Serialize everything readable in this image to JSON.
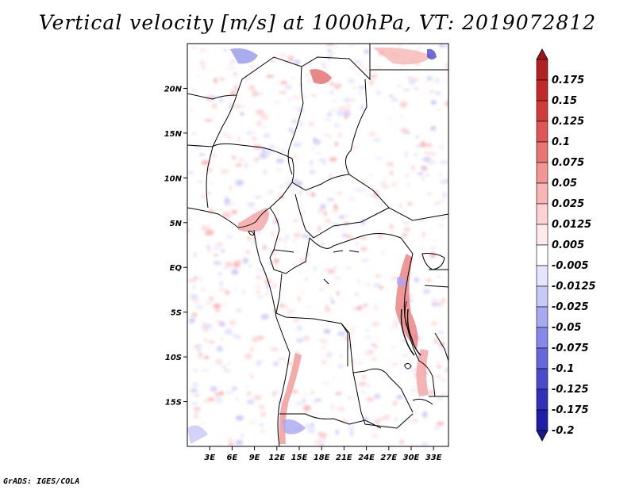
{
  "title": "Vertical velocity [m/s] at 1000hPa, VT: 2019072812",
  "credit": "GrADS: IGES/COLA",
  "map": {
    "region": "Central Africa",
    "lon_range": [
      0,
      35
    ],
    "lat_range": [
      -20,
      25
    ],
    "lat_ticks": [
      {
        "value": 20,
        "label": "20N"
      },
      {
        "value": 15,
        "label": "15N"
      },
      {
        "value": 10,
        "label": "10N"
      },
      {
        "value": 5,
        "label": "5N"
      },
      {
        "value": 0,
        "label": "EQ"
      },
      {
        "value": -5,
        "label": "5S"
      },
      {
        "value": -10,
        "label": "10S"
      },
      {
        "value": -15,
        "label": "15S"
      }
    ],
    "lon_ticks": [
      {
        "value": 3,
        "label": "3E"
      },
      {
        "value": 6,
        "label": "6E"
      },
      {
        "value": 9,
        "label": "9E"
      },
      {
        "value": 12,
        "label": "12E"
      },
      {
        "value": 15,
        "label": "15E"
      },
      {
        "value": 18,
        "label": "18E"
      },
      {
        "value": 21,
        "label": "21E"
      },
      {
        "value": 24,
        "label": "24E"
      },
      {
        "value": 27,
        "label": "27E"
      },
      {
        "value": 30,
        "label": "30E"
      },
      {
        "value": 33,
        "label": "33E"
      }
    ]
  },
  "colorbar": {
    "levels": [
      {
        "label": "0.175",
        "color": "#b22222"
      },
      {
        "label": "0.15",
        "color": "#c12a2a"
      },
      {
        "label": "0.125",
        "color": "#d23a3a"
      },
      {
        "label": "0.1",
        "color": "#e05555"
      },
      {
        "label": "0.075",
        "color": "#ea7474"
      },
      {
        "label": "0.05",
        "color": "#f29595"
      },
      {
        "label": "0.025",
        "color": "#f8b5b5"
      },
      {
        "label": "0.0125",
        "color": "#fcd2d2"
      },
      {
        "label": "0.005",
        "color": "#feeaea"
      },
      {
        "label": "-0.005",
        "color": "#ffffff"
      },
      {
        "label": "-0.0125",
        "color": "#e4e4fc"
      },
      {
        "label": "-0.025",
        "color": "#c8c8f8"
      },
      {
        "label": "-0.05",
        "color": "#a8a8f2"
      },
      {
        "label": "-0.075",
        "color": "#8888ea"
      },
      {
        "label": "-0.1",
        "color": "#6666dd"
      },
      {
        "label": "-0.125",
        "color": "#4a4acc"
      },
      {
        "label": "-0.175",
        "color": "#3030b8"
      },
      {
        "label": "-0.2",
        "color": "#1e1ea6"
      }
    ],
    "top_arrow_color": "#9e1515",
    "bottom_arrow_color": "#1a1a8c"
  }
}
